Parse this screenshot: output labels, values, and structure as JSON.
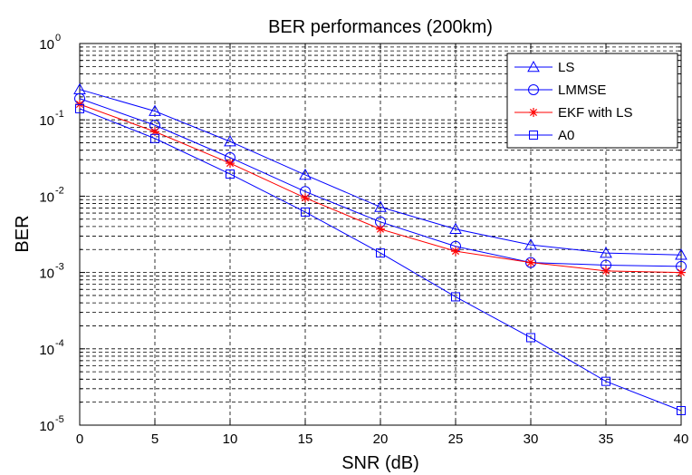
{
  "chart_data": {
    "type": "line",
    "title": "BER performances (200km)",
    "xlabel": "SNR (dB)",
    "ylabel": "BER",
    "xlim": [
      0,
      40
    ],
    "ylim": [
      1e-05,
      1
    ],
    "yscale": "log",
    "grid": true,
    "grid_style": "dashed",
    "legend_position": "top-right",
    "x_ticks": [
      0,
      5,
      10,
      15,
      20,
      25,
      30,
      35,
      40
    ],
    "y_ticks": [
      {
        "base": "10",
        "exp": "0",
        "value": 1
      },
      {
        "base": "10",
        "exp": "-1",
        "value": 0.1
      },
      {
        "base": "10",
        "exp": "-2",
        "value": 0.01
      },
      {
        "base": "10",
        "exp": "-3",
        "value": 0.001
      },
      {
        "base": "10",
        "exp": "-4",
        "value": 0.0001
      },
      {
        "base": "10",
        "exp": "-5",
        "value": 1e-05
      }
    ],
    "x": [
      0,
      5,
      10,
      15,
      20,
      25,
      30,
      35,
      40
    ],
    "series": [
      {
        "name": "LS",
        "color": "#0000ff",
        "marker": "triangle",
        "values": [
          0.25,
          0.13,
          0.052,
          0.019,
          0.0072,
          0.0037,
          0.0023,
          0.0018,
          0.0017
        ]
      },
      {
        "name": "LMMSE",
        "color": "#0000ff",
        "marker": "circle",
        "values": [
          0.19,
          0.085,
          0.032,
          0.0115,
          0.0046,
          0.0022,
          0.00135,
          0.00125,
          0.0012
        ]
      },
      {
        "name": "EKF with LS",
        "color": "#ff0000",
        "marker": "star",
        "values": [
          0.16,
          0.07,
          0.027,
          0.0095,
          0.0037,
          0.0019,
          0.00135,
          0.00105,
          0.001
        ]
      },
      {
        "name": "A0",
        "color": "#0000ff",
        "marker": "square",
        "values": [
          0.14,
          0.057,
          0.0195,
          0.0062,
          0.0018,
          0.00048,
          0.00014,
          3.75e-05,
          1.55e-05
        ]
      }
    ]
  }
}
